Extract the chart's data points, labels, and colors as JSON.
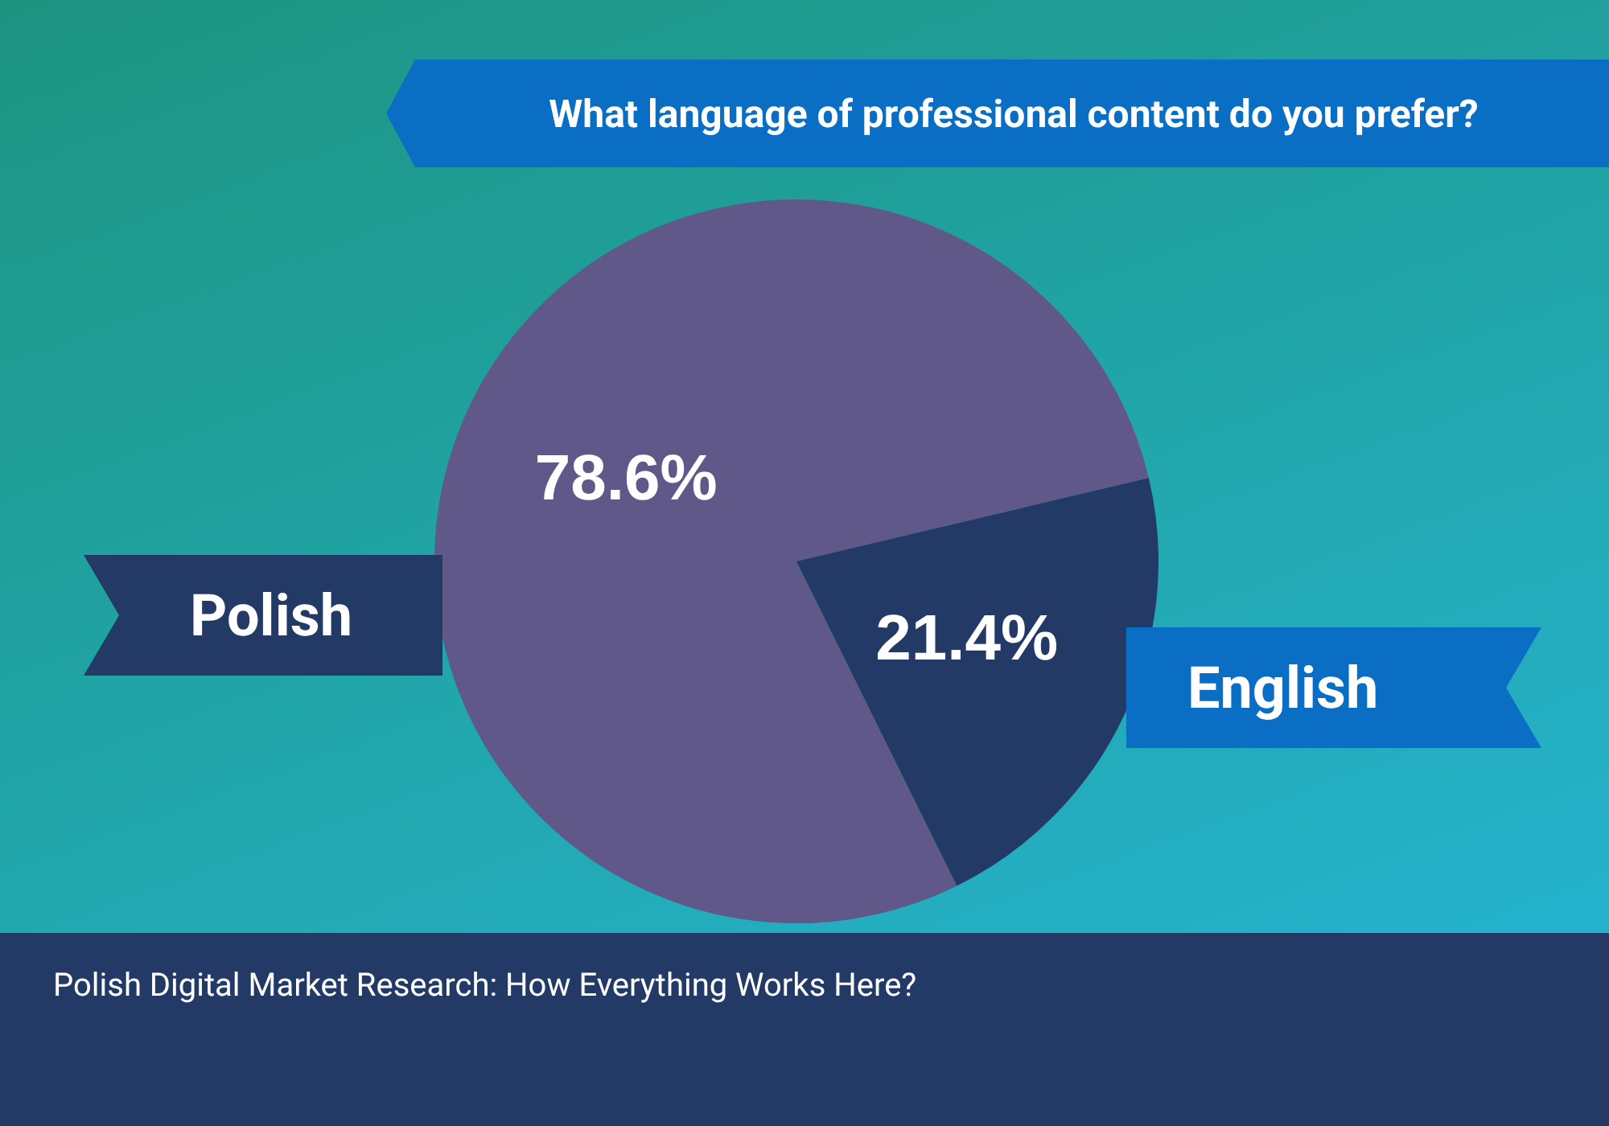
{
  "chart_data": {
    "type": "pie",
    "title": "What language of professional content do you prefer?",
    "categories": [
      "Polish",
      "English"
    ],
    "values": [
      78.6,
      21.4
    ],
    "colors": [
      "#5f5888",
      "#233a66"
    ],
    "value_labels": [
      "78.6%",
      "21.4%"
    ],
    "legend": false,
    "annotations": [
      "Polish Digital Market Research: How Everything Works Here?"
    ]
  }
}
